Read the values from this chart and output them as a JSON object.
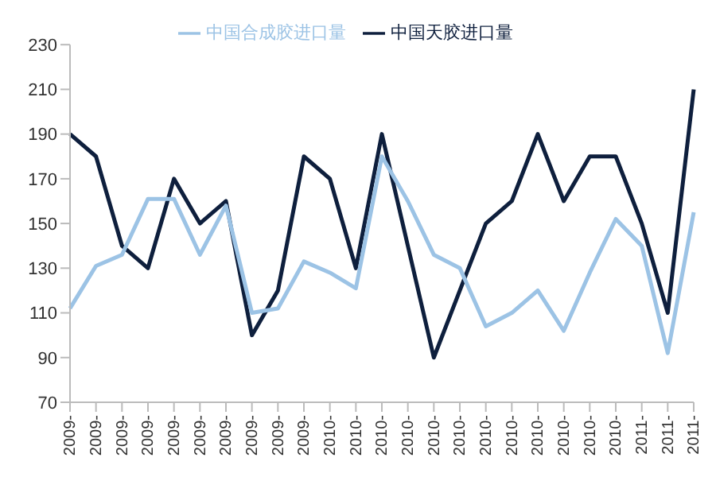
{
  "chart_data": {
    "type": "line",
    "categories": [
      "2009-",
      "2009-",
      "2009-",
      "2009-",
      "2009-",
      "2009-",
      "2009-",
      "2009-",
      "2009-",
      "2009-",
      "2010-",
      "2010-",
      "2010-",
      "2010-",
      "2010-",
      "2010-",
      "2010-",
      "2010-",
      "2010-",
      "2010-",
      "2010-",
      "2010-",
      "2011-",
      "2011-",
      "2011-"
    ],
    "series": [
      {
        "name": "中国天胶进口量",
        "color": "#0e1f3d",
        "values": [
          190,
          180,
          140,
          130,
          170,
          150,
          160,
          100,
          120,
          180,
          170,
          130,
          190,
          140,
          90,
          120,
          150,
          160,
          190,
          160,
          180,
          180,
          150,
          110,
          210
        ]
      },
      {
        "name": "中国合成胶进口量",
        "color": "#9cc3e5",
        "values": [
          112,
          131,
          136,
          161,
          161,
          136,
          158,
          110,
          112,
          133,
          128,
          121,
          180,
          160,
          136,
          130,
          104,
          110,
          120,
          102,
          128,
          152,
          140,
          92,
          155
        ]
      }
    ],
    "ylim": [
      70,
      230
    ],
    "yticks": [
      70,
      90,
      110,
      130,
      150,
      170,
      190,
      210,
      230
    ],
    "grid": false,
    "legend": "top",
    "marker": "none",
    "line_style": "solid"
  }
}
